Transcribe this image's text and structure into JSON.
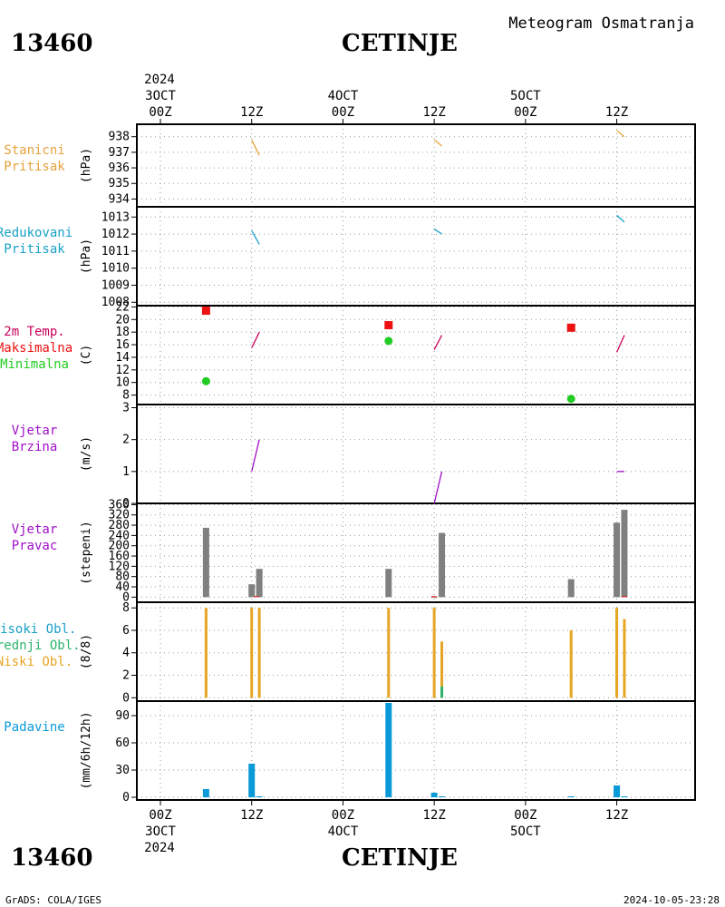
{
  "header": {
    "station_id": "13460",
    "station_name": "CETINJE",
    "meteogram_title": "Meteogram Osmatranja"
  },
  "footer": {
    "station_id": "13460",
    "station_name": "CETINJE",
    "credit": "GrADS: COLA/IGES",
    "timestamp": "2024-10-05-23:28"
  },
  "time_axis": {
    "top_year": "2024",
    "bottom_year": "2024",
    "ticks": [
      {
        "t": 0,
        "hour": "00Z",
        "date": "3OCT"
      },
      {
        "t": 12,
        "hour": "12Z",
        "date": ""
      },
      {
        "t": 24,
        "hour": "00Z",
        "date": "4OCT"
      },
      {
        "t": 36,
        "hour": "12Z",
        "date": ""
      },
      {
        "t": 48,
        "hour": "00Z",
        "date": "5OCT"
      },
      {
        "t": 60,
        "hour": "12Z",
        "date": ""
      }
    ],
    "range": [
      -3.1,
      70.3
    ]
  },
  "panel_labels": {
    "pressure": [
      "Stanicni",
      "Pritisak"
    ],
    "pressure_unit": "(hPa)",
    "reduced": [
      "Redukovani",
      "Pritisak"
    ],
    "reduced_unit": "(hPa)",
    "temp": [
      "2m Temp.",
      "Maksimalna",
      "Minimalna"
    ],
    "temp_unit": "(C)",
    "wind_speed": [
      "Vjetar",
      "Brzina"
    ],
    "wind_speed_unit": "(m/s)",
    "wind_dir": [
      "Vjetar",
      "Pravac"
    ],
    "wind_dir_unit": "(stepeni)",
    "clouds": [
      "Visoki Obl.",
      "Srednji Obl.",
      "Niski Obl."
    ],
    "clouds_unit": "(8/8)",
    "precip": [
      "Padavine"
    ],
    "precip_unit": "(mm/6h/12h)"
  },
  "colors": {
    "pressure": "#e6a23c",
    "reduced": "#1aa0c8",
    "temp": "#c8005a",
    "tmax": "#ee1111",
    "tmin": "#22cc22",
    "wind": "#a010c8",
    "wind_dir": "#808080",
    "low_cloud": "#e6a523",
    "mid_cloud": "#2db36b",
    "high_cloud": "#1aa0c8",
    "precip": "#0a9ad8"
  },
  "chart_data": [
    {
      "type": "line",
      "id": "pressure",
      "ylim": [
        933.5,
        938.8
      ],
      "yticks": [
        934,
        935,
        936,
        937,
        938
      ],
      "series": [
        {
          "x": [
            12,
            13
          ],
          "values": [
            937.8,
            936.8
          ]
        },
        {
          "x": [
            36,
            37
          ],
          "values": [
            937.8,
            937.4
          ]
        },
        {
          "x": [
            60,
            61
          ],
          "values": [
            938.4,
            938.0
          ]
        }
      ]
    },
    {
      "type": "line",
      "id": "reduced",
      "ylim": [
        1007.8,
        1013.6
      ],
      "yticks": [
        1008,
        1009,
        1010,
        1011,
        1012,
        1013
      ],
      "series": [
        {
          "x": [
            12,
            13
          ],
          "values": [
            1012.2,
            1011.4
          ]
        },
        {
          "x": [
            36,
            37
          ],
          "values": [
            1012.3,
            1012.0
          ]
        },
        {
          "x": [
            60,
            61
          ],
          "values": [
            1013.1,
            1012.7
          ]
        }
      ]
    },
    {
      "type": "scatter",
      "id": "temp",
      "ylim": [
        6.5,
        22.2
      ],
      "yticks": [
        8,
        10,
        12,
        14,
        16,
        18,
        20,
        22
      ],
      "lines": [
        {
          "x": [
            12,
            13
          ],
          "values": [
            15.5,
            18.0
          ]
        },
        {
          "x": [
            36,
            37
          ],
          "values": [
            15.2,
            17.5
          ]
        },
        {
          "x": [
            60,
            61
          ],
          "values": [
            14.8,
            17.5
          ]
        }
      ],
      "tmax": {
        "x": [
          6,
          30,
          54
        ],
        "values": [
          21.4,
          19.1,
          18.7
        ]
      },
      "tmin": {
        "x": [
          6,
          30,
          54
        ],
        "values": [
          10.2,
          16.6,
          7.4
        ]
      }
    },
    {
      "type": "line",
      "id": "wind_speed",
      "ylim": [
        0,
        3.1
      ],
      "yticks": [
        0,
        1,
        2,
        3
      ],
      "series": [
        {
          "x": [
            12,
            13
          ],
          "values": [
            1.0,
            2.0
          ]
        },
        {
          "x": [
            36,
            37
          ],
          "values": [
            0.0,
            1.0
          ]
        },
        {
          "x": [
            60,
            61
          ],
          "values": [
            1.0,
            1.0
          ]
        }
      ]
    },
    {
      "type": "bar",
      "id": "wind_dir",
      "ylim": [
        -20,
        365
      ],
      "yticks": [
        0,
        40,
        80,
        120,
        160,
        200,
        240,
        280,
        320,
        360
      ],
      "bars": {
        "x": [
          6,
          12,
          13,
          30,
          36,
          37,
          54,
          60,
          61
        ],
        "values": [
          270,
          50,
          110,
          110,
          0,
          250,
          70,
          290,
          340
        ]
      }
    },
    {
      "type": "bar",
      "id": "clouds",
      "ylim": [
        -0.3,
        8.5
      ],
      "yticks": [
        0,
        2,
        4,
        6,
        8
      ],
      "low": {
        "x": [
          6,
          12,
          13,
          30,
          36,
          37,
          54,
          60,
          61
        ],
        "values": [
          8,
          8,
          8,
          8,
          8,
          5,
          6,
          8,
          7
        ]
      },
      "mid": {
        "x": [
          37
        ],
        "values": [
          1
        ]
      }
    },
    {
      "type": "bar",
      "id": "precip",
      "ylim": [
        -3,
        106
      ],
      "yticks": [
        0,
        30,
        60,
        90
      ],
      "bars": {
        "x": [
          6,
          12,
          13,
          30,
          36,
          37,
          54,
          60,
          61
        ],
        "values": [
          9,
          37,
          1,
          104,
          5,
          1,
          1,
          13,
          1
        ]
      }
    }
  ]
}
